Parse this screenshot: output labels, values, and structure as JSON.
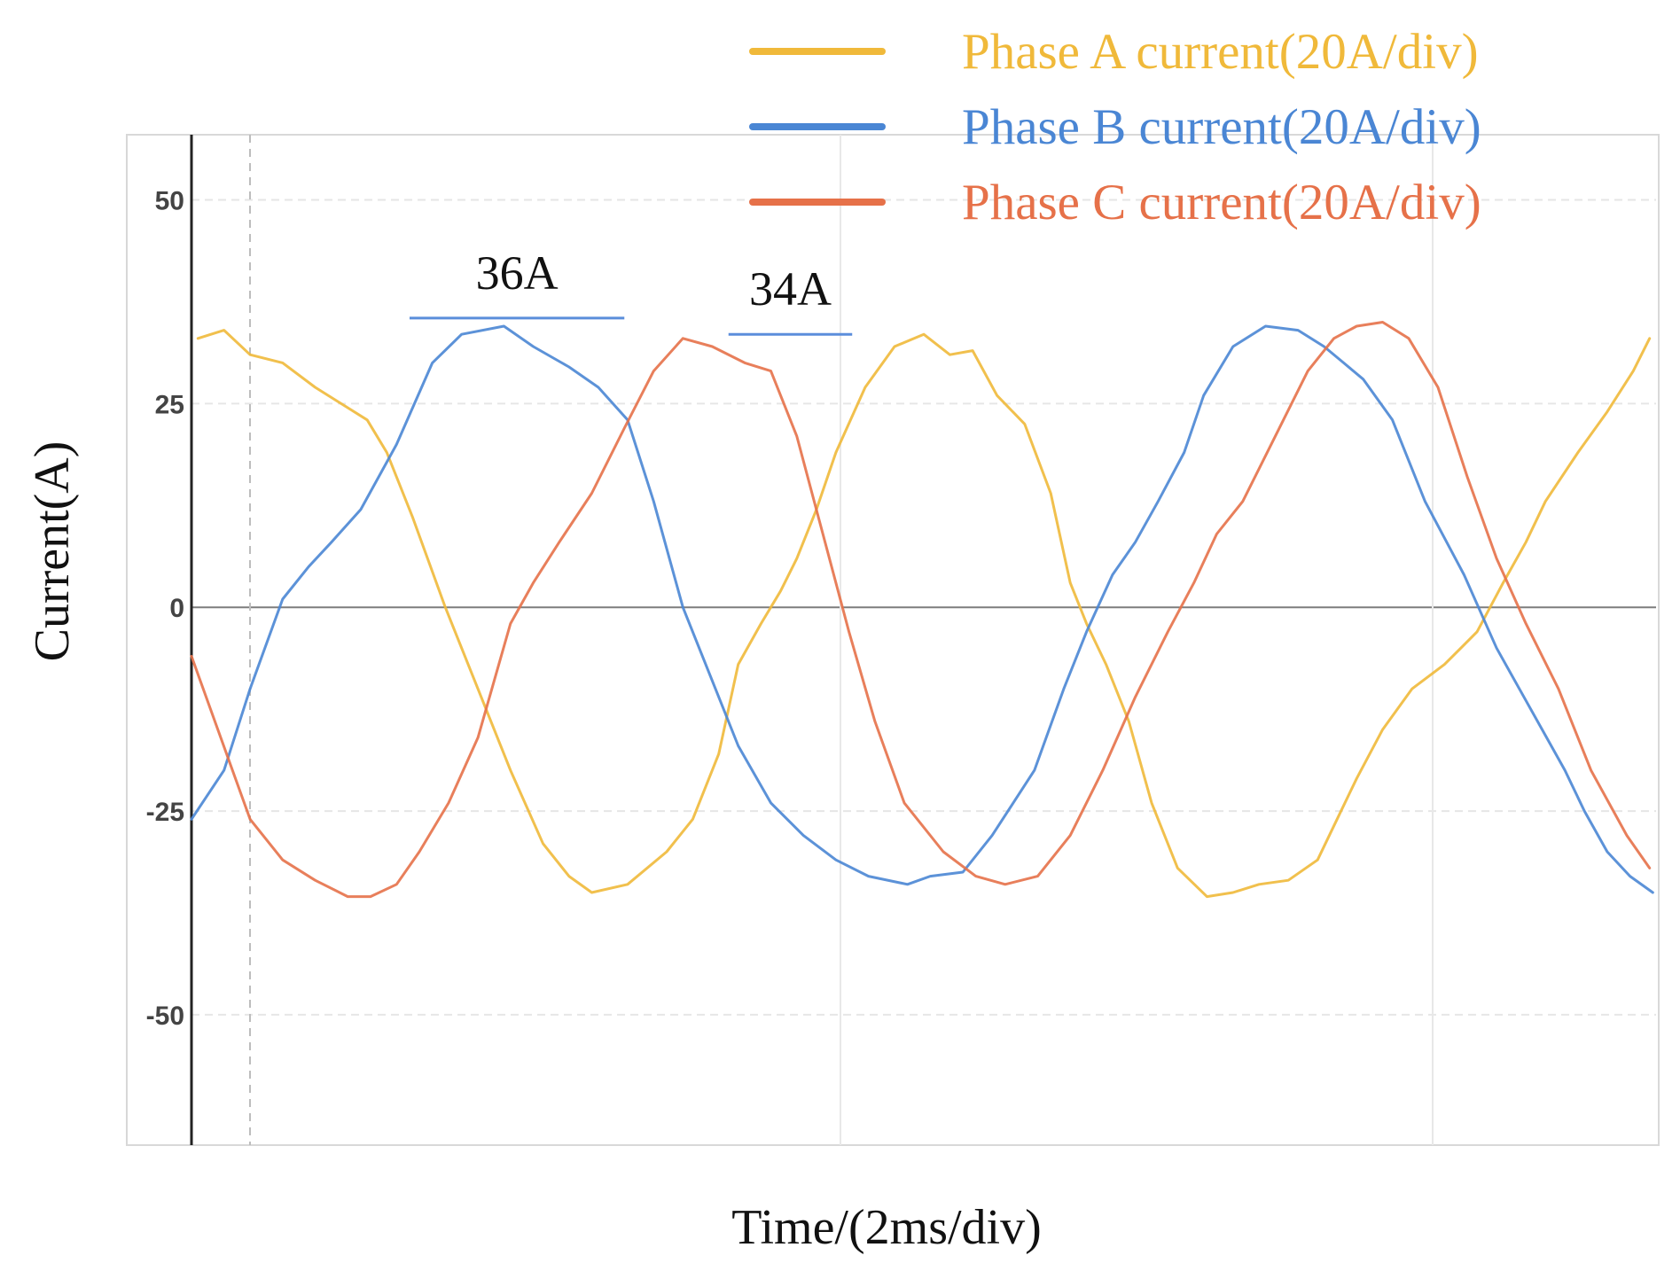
{
  "chart_data": {
    "type": "line",
    "xlabel": "Time/(2ms/div)",
    "ylabel": "Current(A)",
    "ylim": [
      -66,
      58
    ],
    "xlim": [
      0,
      90
    ],
    "yticks": [
      50,
      25,
      0,
      -25,
      -50
    ],
    "ytick_labels": [
      "50",
      "25",
      "0",
      "-25",
      "-50"
    ],
    "grid": true,
    "legend_position": "top-right",
    "annotations": [
      {
        "text": "36A",
        "x_start": 13.4,
        "x_end": 26.6,
        "y": 35.5,
        "color": "#5b8edb"
      },
      {
        "text": "34A",
        "x_start": 33,
        "x_end": 40.6,
        "y": 33.5,
        "color": "#5b8edb"
      }
    ],
    "series": [
      {
        "name": "Phase A current(20A/div)",
        "color": "#f0b93a",
        "x": [
          0.4,
          2,
          3.6,
          5.6,
          7.6,
          9.6,
          10.8,
          12,
          13.6,
          15.6,
          17.6,
          19.6,
          21.6,
          23.2,
          24.6,
          26.8,
          29.2,
          30.8,
          32.4,
          33.6,
          35,
          36.2,
          37.2,
          38.4,
          39.6,
          41.4,
          43.2,
          45,
          46.6,
          48,
          49.5,
          51.2,
          52.8,
          54,
          55,
          56.2,
          57.6,
          59,
          60.6,
          62.4,
          64,
          65.6,
          67.4,
          69.2,
          70.4,
          71.6,
          73.2,
          75,
          77,
          79,
          80.6,
          82,
          83.2,
          85.2,
          87,
          88.6,
          89.6
        ],
        "y": [
          33,
          34,
          31,
          30,
          27,
          24.5,
          23,
          19,
          11,
          0,
          -10,
          -20,
          -29,
          -33,
          -35,
          -34,
          -30,
          -26,
          -18,
          -7,
          -2,
          2,
          6,
          12,
          19,
          27,
          32,
          33.5,
          31,
          31.5,
          26,
          22.5,
          14,
          3,
          -2,
          -7,
          -14,
          -24,
          -32,
          -35.5,
          -35,
          -34,
          -33.5,
          -31,
          -26,
          -21,
          -15,
          -10,
          -7,
          -3,
          3,
          8,
          13,
          19,
          24,
          29,
          33
        ]
      },
      {
        "name": "Phase B current(20A/div)",
        "color": "#4a86d4",
        "x": [
          0,
          2,
          3.6,
          5.6,
          7.2,
          8.6,
          10.4,
          12.6,
          14.8,
          16.6,
          19.2,
          21,
          23.2,
          25,
          26.8,
          28.4,
          30.2,
          31.8,
          33.6,
          35.6,
          37.6,
          39.6,
          41.6,
          44,
          45.4,
          47.4,
          49.2,
          51.8,
          53.6,
          55,
          56.6,
          58,
          59.4,
          61,
          62.2,
          64,
          66,
          68,
          69.6,
          70.8,
          72,
          73.8,
          75.8,
          78.2,
          80.2,
          81.6,
          83,
          84.4,
          85.6,
          87,
          88.4,
          89.8
        ],
        "y": [
          -26,
          -20,
          -10,
          1,
          5,
          8,
          12,
          20,
          30,
          33.5,
          34.5,
          32,
          29.5,
          27,
          23,
          13,
          0,
          -8,
          -17,
          -24,
          -28,
          -31,
          -33,
          -34,
          -33,
          -32.5,
          -28,
          -20,
          -10,
          -3,
          4,
          8,
          13,
          19,
          26,
          32,
          34.5,
          34,
          32,
          30,
          28,
          23,
          13,
          4,
          -5,
          -10,
          -15,
          -20,
          -25,
          -30,
          -33,
          -35
        ]
      },
      {
        "name": "Phase C current(20A/div)",
        "color": "#e67149",
        "x": [
          0,
          1.8,
          3.6,
          5.6,
          7.6,
          9.6,
          11,
          12.6,
          14,
          15.8,
          17.6,
          19.6,
          21,
          22.6,
          24.6,
          26.6,
          28.4,
          30.2,
          32,
          34,
          35.6,
          37.2,
          38.8,
          40.4,
          42,
          43.8,
          46.2,
          48.2,
          50,
          52,
          54,
          56,
          58,
          60,
          61.6,
          63,
          64.6,
          66.6,
          68.6,
          70.2,
          71.6,
          73.2,
          74.8,
          76.6,
          78.4,
          80.2,
          82,
          84,
          86,
          88.2,
          89.6
        ],
        "y": [
          -6,
          -16,
          -26,
          -31,
          -33.5,
          -35.5,
          -35.5,
          -34,
          -30,
          -24,
          -16,
          -2,
          3,
          8,
          14,
          22,
          29,
          33,
          32,
          30,
          29,
          21,
          9,
          -3,
          -14,
          -24,
          -30,
          -33,
          -34,
          -33,
          -28,
          -20,
          -11,
          -3,
          3,
          9,
          13,
          21,
          29,
          33,
          34.5,
          35,
          33,
          27,
          16,
          6,
          -2,
          -10,
          -20,
          -28,
          -32
        ]
      }
    ]
  }
}
